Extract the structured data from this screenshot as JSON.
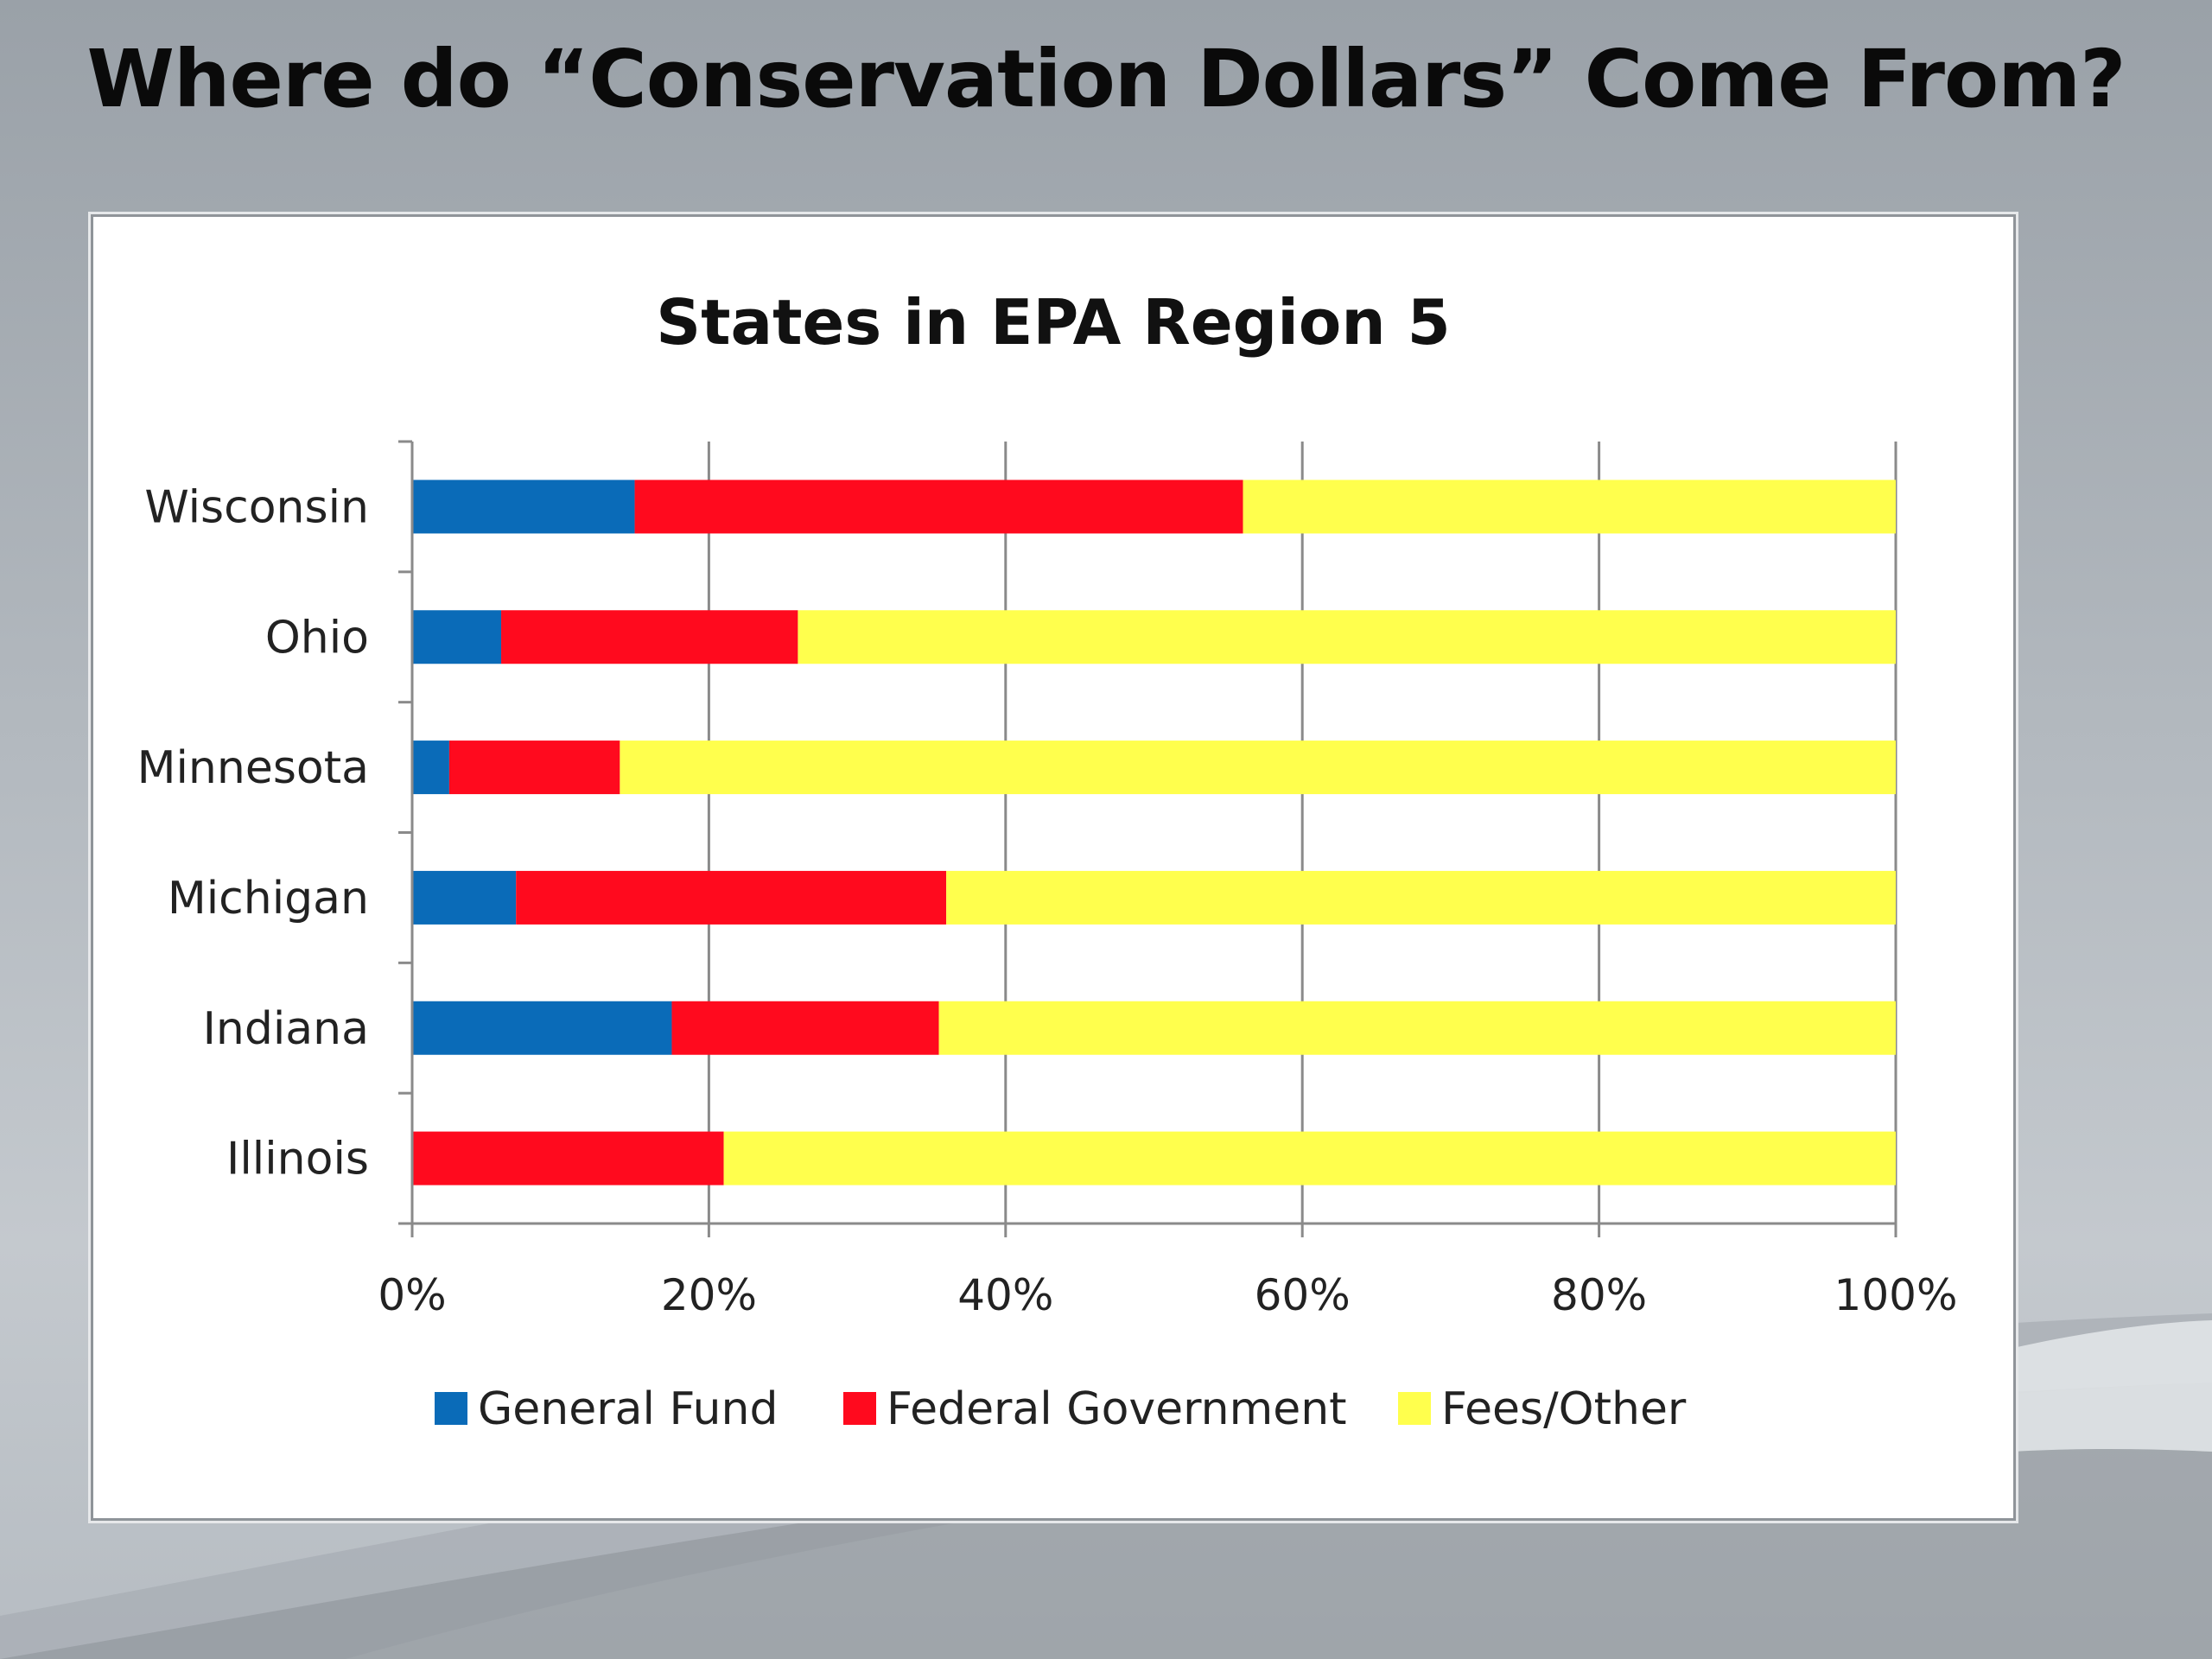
{
  "slide": {
    "title": "Where do “Conservation Dollars” Come From?"
  },
  "colors": {
    "general_fund": "#0a6bb8",
    "federal_government": "#ff0a1e",
    "fees_other": "#ffff4d",
    "gridline": "#8a8a8a"
  },
  "chart_data": {
    "type": "bar",
    "orientation": "horizontal",
    "stacked": "percent",
    "title": "States in EPA Region 5",
    "xlabel": "",
    "ylabel": "",
    "categories": [
      "Wisconsin",
      "Ohio",
      "Minnesota",
      "Michigan",
      "Indiana",
      "Illinois"
    ],
    "series": [
      {
        "name": "General Fund",
        "color": "#0a6bb8",
        "values": [
          15,
          6,
          2.5,
          7,
          17.5,
          0
        ]
      },
      {
        "name": "Federal Government",
        "color": "#ff0a1e",
        "values": [
          41,
          20,
          11.5,
          29,
          18,
          21
        ]
      },
      {
        "name": "Fees/Other",
        "color": "#ffff4d",
        "values": [
          44,
          74,
          86,
          64,
          64.5,
          79
        ]
      }
    ],
    "xlim": [
      0,
      100
    ],
    "xticks": [
      "0%",
      "20%",
      "40%",
      "60%",
      "80%",
      "100%"
    ],
    "grid": true,
    "legend_position": "bottom"
  }
}
